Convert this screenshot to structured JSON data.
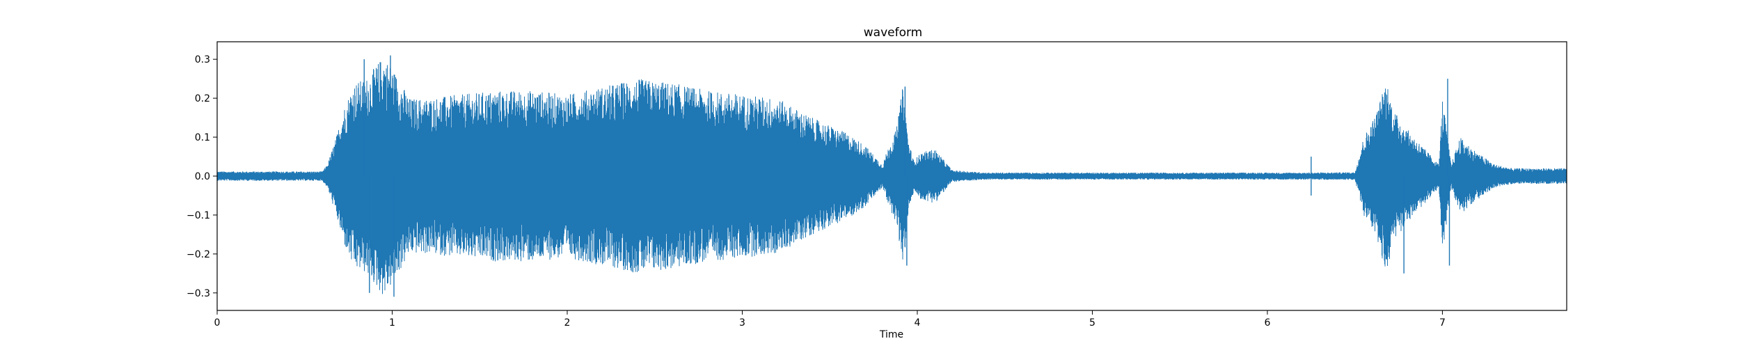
{
  "chart_data": {
    "type": "line",
    "title": "waveform",
    "xlabel": "Time",
    "ylabel": "",
    "xlim": [
      0,
      7.71
    ],
    "ylim": [
      -0.345,
      0.345
    ],
    "xticks": [
      0,
      1,
      2,
      3,
      4,
      5,
      6,
      7
    ],
    "xtick_labels": [
      "0",
      "1",
      "2",
      "3",
      "4",
      "5",
      "6",
      "7"
    ],
    "yticks": [
      0.3,
      0.2,
      0.1,
      0.0,
      -0.1,
      -0.2,
      -0.3
    ],
    "ytick_labels": [
      "0.3",
      "0.2",
      "0.1",
      "0.0",
      "−0.1",
      "−0.2",
      "−0.3"
    ],
    "grid": false,
    "color": "#1f77b4",
    "series": [
      {
        "x": [
          0.0,
          0.2,
          0.4,
          0.6,
          0.63,
          0.68,
          0.72,
          0.78,
          0.85,
          0.95,
          1.0,
          1.1,
          1.2,
          1.4,
          1.6,
          1.8,
          2.0,
          2.2,
          2.4,
          2.6,
          2.8,
          3.0,
          3.2,
          3.4,
          3.5,
          3.6,
          3.7,
          3.8,
          3.84,
          3.88,
          3.92,
          3.95,
          3.98,
          4.02,
          4.1,
          4.2,
          4.4,
          5.0,
          6.0,
          6.2,
          6.5,
          6.55,
          6.62,
          6.68,
          6.72,
          6.8,
          6.9,
          6.98,
          7.0,
          7.05,
          7.1,
          7.2,
          7.3,
          7.4,
          7.5,
          7.6,
          7.71
        ],
        "envelope": [
          0.012,
          0.012,
          0.012,
          0.012,
          0.03,
          0.1,
          0.17,
          0.24,
          0.25,
          0.31,
          0.28,
          0.2,
          0.2,
          0.21,
          0.22,
          0.22,
          0.21,
          0.23,
          0.25,
          0.24,
          0.22,
          0.21,
          0.2,
          0.15,
          0.13,
          0.11,
          0.08,
          0.03,
          0.08,
          0.12,
          0.24,
          0.09,
          0.04,
          0.06,
          0.07,
          0.015,
          0.009,
          0.009,
          0.009,
          0.009,
          0.01,
          0.1,
          0.16,
          0.25,
          0.17,
          0.12,
          0.07,
          0.03,
          0.2,
          0.03,
          0.1,
          0.06,
          0.03,
          0.02,
          0.02,
          0.02,
          0.02
        ],
        "spikes": [
          {
            "x": 0.99,
            "y": 0.31
          },
          {
            "x": 1.01,
            "y": -0.31
          },
          {
            "x": 0.84,
            "y": 0.3
          },
          {
            "x": 0.87,
            "y": -0.3
          },
          {
            "x": 3.93,
            "y": 0.23
          },
          {
            "x": 3.94,
            "y": -0.23
          },
          {
            "x": 6.78,
            "y": -0.25
          },
          {
            "x": 7.03,
            "y": 0.25
          },
          {
            "x": 7.04,
            "y": -0.23
          },
          {
            "x": 6.25,
            "y": 0.05
          },
          {
            "x": 6.25,
            "y": -0.05
          }
        ]
      }
    ]
  }
}
